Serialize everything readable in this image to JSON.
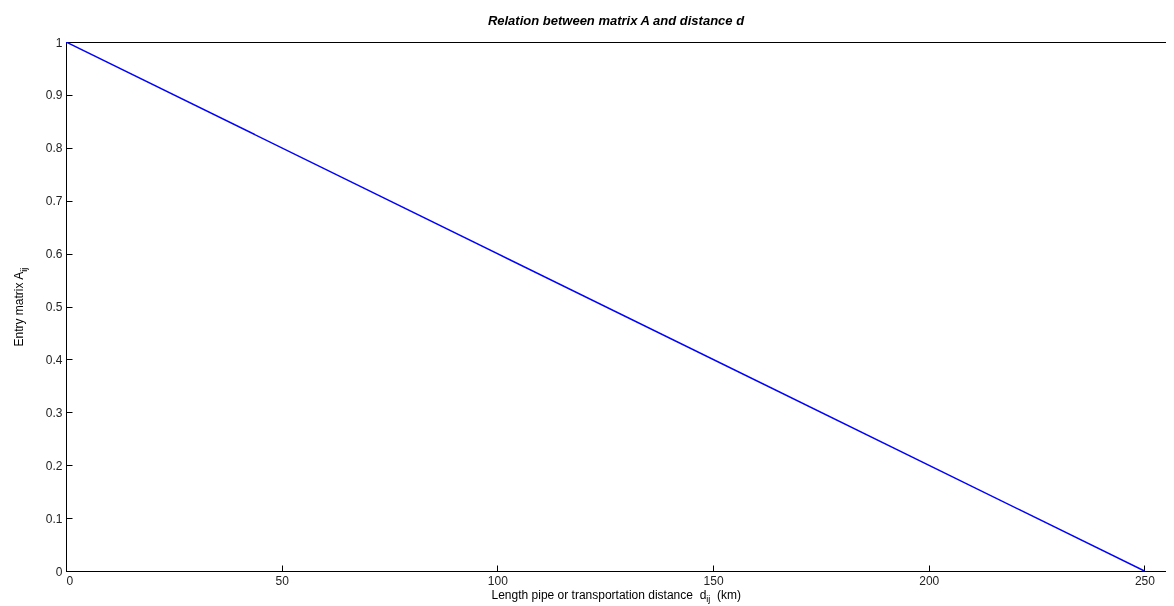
{
  "chart_data": {
    "type": "line",
    "title": "Relation between matrix A and distance d",
    "xlabel": "Length pipe or transportation distance  d$_{ij}$  (km)",
    "ylabel": "Entry matrix A$_{ij}$",
    "x": [
      0,
      250
    ],
    "series": [
      {
        "color": "#0000ff",
        "values": [
          1,
          0
        ]
      }
    ],
    "xlim": [
      0,
      255
    ],
    "xticks": [
      0,
      50,
      100,
      150,
      200,
      250
    ],
    "ylim": [
      0,
      1
    ],
    "yticks": [
      0,
      0.1,
      0.2,
      0.3,
      0.4,
      0.5,
      0.6,
      0.7,
      0.8,
      0.9,
      1
    ],
    "grid": false,
    "marker": "none",
    "line_style": "solid"
  }
}
